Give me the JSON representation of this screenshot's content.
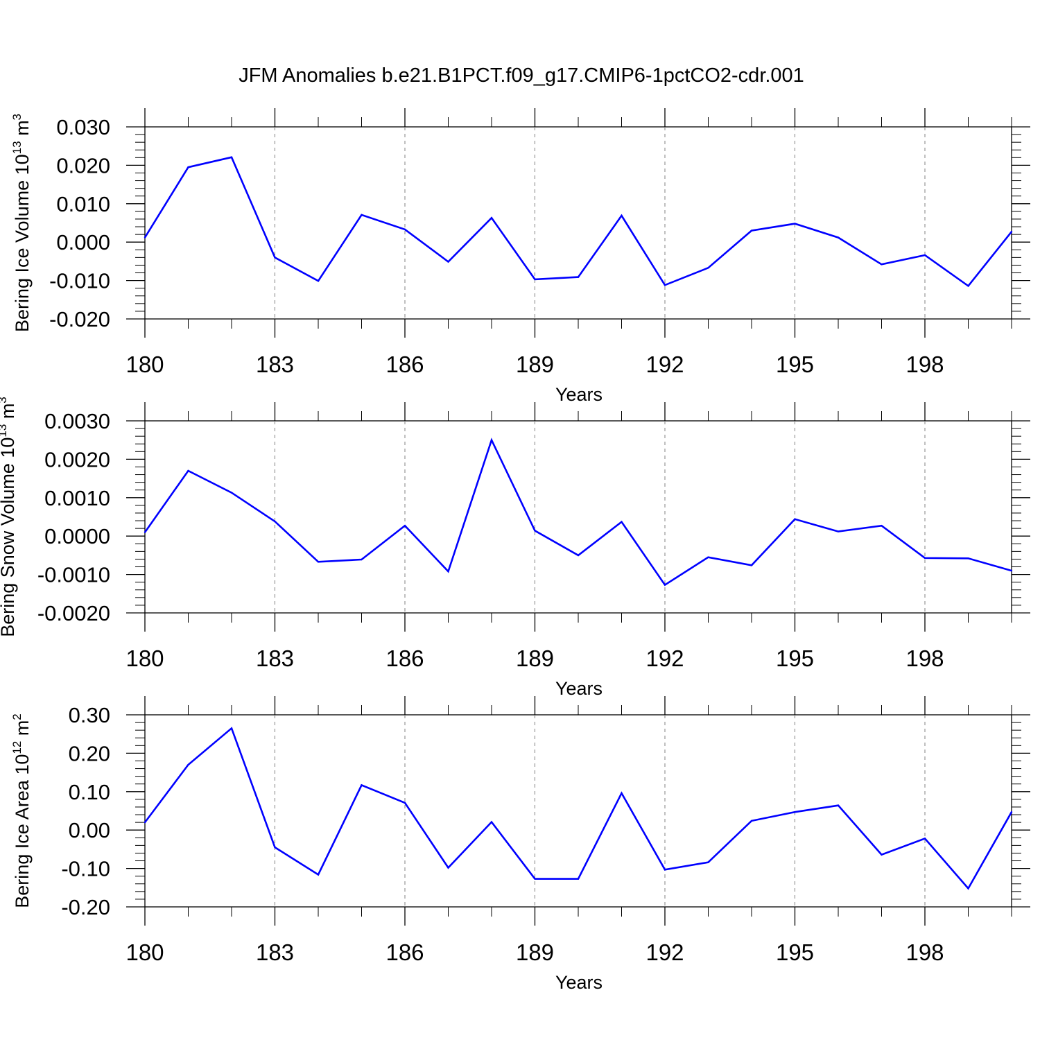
{
  "title": "JFM Anomalies b.e21.B1PCT.f09_g17.CMIP6-1pctCO2-cdr.001",
  "colors": {
    "line": "#0000ff",
    "axis": "#000000",
    "grid": "#808080",
    "background": "#ffffff"
  },
  "chart_data": [
    {
      "type": "line",
      "ylabel": "Bering Ice Volume 10",
      "ylabel_exp": "13",
      "ylabel_unit": " m",
      "ylabel_unit_exp": "3",
      "xlabel": "Years",
      "xlim": [
        180,
        200
      ],
      "ylim": [
        -0.02,
        0.03
      ],
      "grid": "vertical dashed",
      "x_ticks": [
        180,
        183,
        186,
        189,
        192,
        195,
        198
      ],
      "x_tick_labels": [
        "180",
        "183",
        "186",
        "189",
        "192",
        "195",
        "198"
      ],
      "y_ticks": [
        0.03,
        0.02,
        0.01,
        0.0,
        -0.01,
        -0.02
      ],
      "y_tick_labels": [
        "0.030",
        "0.020",
        "0.010",
        "0.000",
        "-0.010",
        "-0.020"
      ],
      "y_minor_step": 0.002,
      "x": [
        180,
        181,
        182,
        183,
        184,
        185,
        186,
        187,
        188,
        189,
        190,
        191,
        192,
        193,
        194,
        195,
        196,
        197,
        198,
        199,
        200
      ],
      "values": [
        0.0012,
        0.0195,
        0.0221,
        -0.004,
        -0.0101,
        0.0071,
        0.0033,
        -0.0051,
        0.0063,
        -0.0097,
        -0.0091,
        0.0069,
        -0.0112,
        -0.0067,
        0.003,
        0.0048,
        0.0012,
        -0.0058,
        -0.0034,
        -0.0114,
        0.0027
      ]
    },
    {
      "type": "line",
      "ylabel": "Bering Snow Volume 10",
      "ylabel_exp": "13",
      "ylabel_unit": " m",
      "ylabel_unit_exp": "3",
      "xlabel": "Years",
      "xlim": [
        180,
        200
      ],
      "ylim": [
        -0.002,
        0.003
      ],
      "grid": "vertical dashed",
      "x_ticks": [
        180,
        183,
        186,
        189,
        192,
        195,
        198
      ],
      "x_tick_labels": [
        "180",
        "183",
        "186",
        "189",
        "192",
        "195",
        "198"
      ],
      "y_ticks": [
        0.003,
        0.002,
        0.001,
        0.0,
        -0.001,
        -0.002
      ],
      "y_tick_labels": [
        "0.0030",
        "0.0020",
        "0.0010",
        "0.0000",
        "-0.0010",
        "-0.0020"
      ],
      "y_minor_step": 0.0002,
      "x": [
        180,
        181,
        182,
        183,
        184,
        185,
        186,
        187,
        188,
        189,
        190,
        191,
        192,
        193,
        194,
        195,
        196,
        197,
        198,
        199,
        200
      ],
      "values": [
        0.0001,
        0.0017,
        0.00113,
        0.00038,
        -0.00067,
        -0.00061,
        0.00027,
        -0.00092,
        0.0025,
        0.00014,
        -0.0005,
        0.00037,
        -0.00127,
        -0.00055,
        -0.00076,
        0.00044,
        0.00012,
        0.00027,
        -0.00057,
        -0.00058,
        -0.0009
      ]
    },
    {
      "type": "line",
      "ylabel": "Bering Ice Area 10",
      "ylabel_exp": "12",
      "ylabel_unit": " m",
      "ylabel_unit_exp": "2",
      "xlabel": "Years",
      "xlim": [
        180,
        200
      ],
      "ylim": [
        -0.2,
        0.3
      ],
      "grid": "vertical dashed",
      "x_ticks": [
        180,
        183,
        186,
        189,
        192,
        195,
        198
      ],
      "x_tick_labels": [
        "180",
        "183",
        "186",
        "189",
        "192",
        "195",
        "198"
      ],
      "y_ticks": [
        0.3,
        0.2,
        0.1,
        0.0,
        -0.1,
        -0.2
      ],
      "y_tick_labels": [
        "0.30",
        "0.20",
        "0.10",
        "0.00",
        "-0.10",
        "-0.20"
      ],
      "y_minor_step": 0.02,
      "x": [
        180,
        181,
        182,
        183,
        184,
        185,
        186,
        187,
        188,
        189,
        190,
        191,
        192,
        193,
        194,
        195,
        196,
        197,
        198,
        199,
        200
      ],
      "values": [
        0.02,
        0.17,
        0.265,
        -0.045,
        -0.116,
        0.117,
        0.071,
        -0.098,
        0.021,
        -0.127,
        -0.127,
        0.096,
        -0.103,
        -0.084,
        0.024,
        0.047,
        0.064,
        -0.064,
        -0.022,
        -0.152,
        0.047
      ]
    }
  ]
}
